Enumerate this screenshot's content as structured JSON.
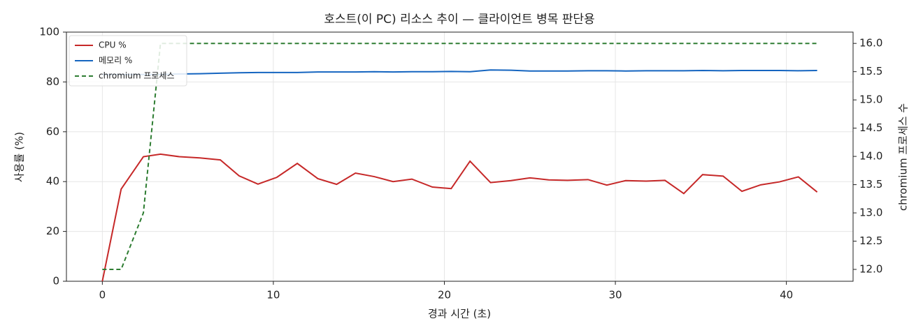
{
  "chart_data": {
    "type": "line",
    "title": "호스트(이 PC) 리소스 추이 — 클라이언트 병목 판단용",
    "x_label": "경과 시간 (초)",
    "y_label": "사용률 (%)",
    "y2_label": "chromium 프로세스 수",
    "x": [
      0,
      1.1,
      2.4,
      3.4,
      4.5,
      5.7,
      6.9,
      8.0,
      9.1,
      10.2,
      11.4,
      12.6,
      13.7,
      14.8,
      15.9,
      17.0,
      18.1,
      19.3,
      20.4,
      21.5,
      22.7,
      23.9,
      25.0,
      26.1,
      27.2,
      28.4,
      29.5,
      30.6,
      31.8,
      32.9,
      34.0,
      35.1,
      36.3,
      37.4,
      38.5,
      39.6,
      40.7,
      41.8
    ],
    "series": [
      {
        "name": "CPU %",
        "color": "#c62828",
        "dash": false,
        "values": [
          0,
          37,
          50,
          51,
          50,
          49.5,
          48.7,
          42.3,
          39,
          41.7,
          47.3,
          41.2,
          38.9,
          43.4,
          42,
          40,
          41,
          37.8,
          37.2,
          48.2,
          39.6,
          40.4,
          41.5,
          40.7,
          40.5,
          40.8,
          38.6,
          40.4,
          40.2,
          40.5,
          35.2,
          42.8,
          42.2,
          36.1,
          38.7,
          39.9,
          41.9,
          35.8
        ]
      },
      {
        "name": "메모리 %",
        "color": "#1565c0",
        "dash": false,
        "values": [
          83,
          83,
          83,
          83,
          83.2,
          83.3,
          83.5,
          83.7,
          83.8,
          83.8,
          83.8,
          84,
          84,
          84,
          84.1,
          84,
          84.1,
          84.1,
          84.2,
          84.1,
          84.8,
          84.7,
          84.4,
          84.4,
          84.4,
          84.5,
          84.5,
          84.4,
          84.5,
          84.5,
          84.5,
          84.6,
          84.5,
          84.6,
          84.6,
          84.6,
          84.5,
          84.6
        ]
      },
      {
        "name": "chromium 프로세스",
        "color": "#2e7d32",
        "dash": true,
        "axis": "y2",
        "values": [
          12,
          12,
          13,
          16,
          16,
          16,
          16,
          16,
          16,
          16,
          16,
          16,
          16,
          16,
          16,
          16,
          16,
          16,
          16,
          16,
          16,
          16,
          16,
          16,
          16,
          16,
          16,
          16,
          16,
          16,
          16,
          16,
          16,
          16,
          16,
          16,
          16,
          16
        ]
      }
    ],
    "xlim": [
      -2.1,
      43.9
    ],
    "xticks": [
      0,
      10,
      20,
      30,
      40
    ],
    "ylim": [
      0,
      100
    ],
    "yticks": [
      0,
      20,
      40,
      60,
      80,
      100
    ],
    "y2lim": [
      11.79,
      16.2
    ],
    "y2ticks": [
      {
        "value": 12,
        "label": "12.0"
      },
      12.5,
      {
        "value": 13,
        "label": "13.0"
      },
      13.5,
      {
        "value": 14,
        "label": "14.0"
      },
      14.5,
      {
        "value": 15,
        "label": "15.0"
      },
      15.5,
      {
        "value": 16,
        "label": "16.0"
      }
    ],
    "grid": true,
    "legend": "upper-left"
  }
}
